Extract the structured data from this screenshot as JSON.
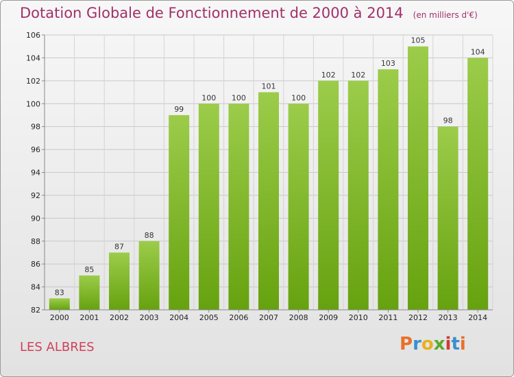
{
  "chart_data": {
    "type": "bar",
    "title": "Dotation Globale de Fonctionnement de 2000 à 2014",
    "subtitle": "(en milliers d'€)",
    "categories": [
      "2000",
      "2001",
      "2002",
      "2003",
      "2004",
      "2005",
      "2006",
      "2007",
      "2008",
      "2009",
      "2010",
      "2011",
      "2012",
      "2013",
      "2014"
    ],
    "values": [
      83,
      85,
      87,
      88,
      99,
      100,
      100,
      101,
      100,
      102,
      102,
      103,
      105,
      98,
      104
    ],
    "ylim": [
      82,
      106
    ],
    "yticks": [
      82,
      84,
      86,
      88,
      90,
      92,
      94,
      96,
      98,
      100,
      102,
      104,
      106
    ],
    "grid": true,
    "bar_colors": {
      "top": "#9ccc4a",
      "bottom": "#66a20f"
    },
    "xlabel": "",
    "ylabel": ""
  },
  "footer": {
    "commune": "LES ALBRES",
    "logo_letters": [
      "P",
      "r",
      "o",
      "x",
      "i",
      "t",
      "i"
    ],
    "logo_colors": [
      "#e8702a",
      "#3a8fd0",
      "#e8b020",
      "#5aab2c",
      "#d03a3a",
      "#3a8fd0",
      "#e8702a"
    ]
  }
}
